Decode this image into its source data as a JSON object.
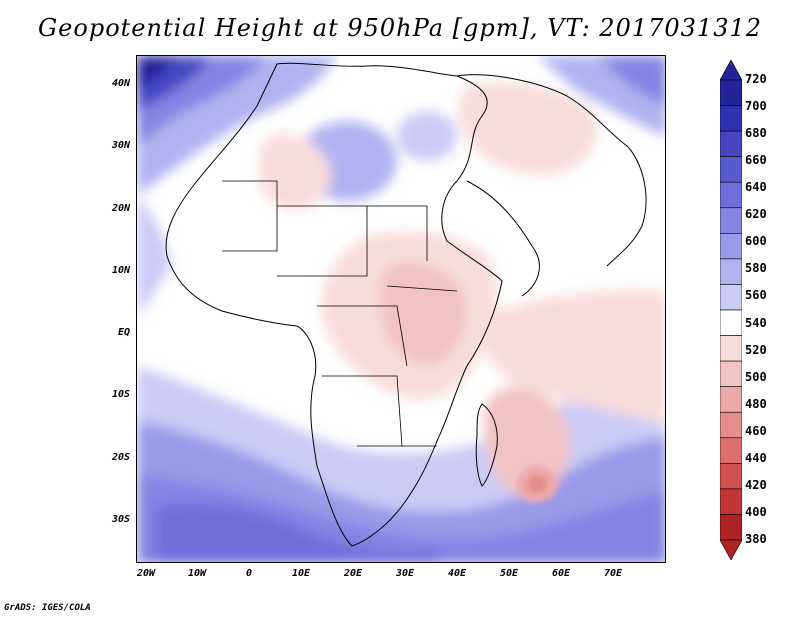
{
  "title": "Geopotential Height at 950hPa [gpm], VT: 2017031312",
  "credit": "GrADS: IGES/COLA",
  "map": {
    "region": "Africa and Indian Ocean",
    "lat_labels": [
      "40N",
      "30N",
      "20N",
      "10N",
      "EQ",
      "10S",
      "20S",
      "30S"
    ],
    "lon_labels": [
      "20W",
      "10W",
      "0",
      "10E",
      "20E",
      "30E",
      "40E",
      "50E",
      "60E",
      "70E"
    ]
  },
  "colorbar": {
    "labels": [
      "720",
      "700",
      "680",
      "660",
      "640",
      "620",
      "600",
      "580",
      "560",
      "540",
      "520",
      "500",
      "480",
      "460",
      "440",
      "420",
      "400",
      "380"
    ],
    "colors": [
      "#23239a",
      "#3232b0",
      "#4646c3",
      "#5a5acf",
      "#6e6edb",
      "#8484e3",
      "#9a9aeb",
      "#b2b2f1",
      "#cbcbf6",
      "#ffffff",
      "#f8dcdc",
      "#f2c3c3",
      "#eda9a9",
      "#e58c8c",
      "#dd6e6e",
      "#d35050",
      "#c33535",
      "#b02323"
    ]
  },
  "chart_data": {
    "type": "heatmap",
    "title": "Geopotential Height at 950hPa [gpm], VT: 2017031312",
    "variable": "Geopotential Height",
    "level": "950hPa",
    "units": "gpm",
    "valid_time": "2017031312",
    "lon_range": [
      -25,
      80
    ],
    "lat_range": [
      -37,
      45
    ],
    "contour_levels": [
      380,
      400,
      420,
      440,
      460,
      480,
      500,
      520,
      540,
      560,
      580,
      600,
      620,
      640,
      660,
      680,
      700,
      720
    ],
    "features": [
      {
        "name": "Northwest Atlantic high",
        "approx_value": 700
      },
      {
        "name": "Southern ocean belt",
        "approx_value": 620
      },
      {
        "name": "Madagascar low",
        "approx_value": 480
      },
      {
        "name": "East African low",
        "approx_value": 500
      },
      {
        "name": "Sahara",
        "approx_value": 580
      }
    ]
  }
}
